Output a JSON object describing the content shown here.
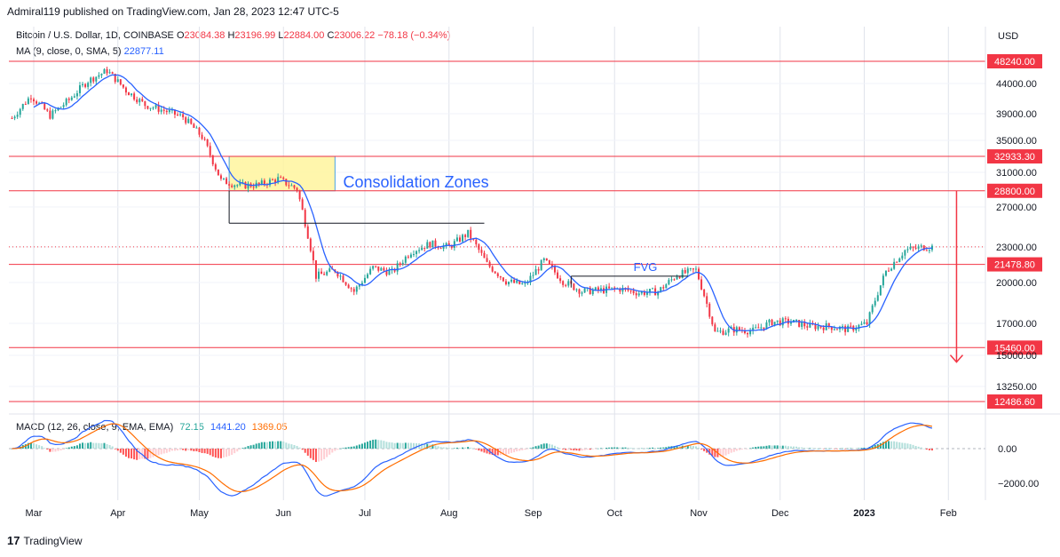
{
  "header": {
    "published": "Admiral119 published on TradingView.com, Jan 28, 2023 12:47 UTC-5"
  },
  "legend": {
    "symbol": "Bitcoin / U.S. Dollar, 1D, COINBASE",
    "o_label": "O",
    "open": "23084.38",
    "h_label": "H",
    "high": "23196.99",
    "l_label": "L",
    "low": "22884.00",
    "c_label": "C",
    "close": "23006.22",
    "change": "−78.18 (−0.34%)",
    "ma_label": "MA (9, close, 0, SMA, 5)",
    "ma_value": "22877.11"
  },
  "macd_legend": {
    "label": "MACD (12, 26, close, 9, EMA, EMA)",
    "histogram": "72.15",
    "macd": "1441.20",
    "signal": "1369.05"
  },
  "footer": {
    "brand": "TradingView",
    "logo": "17"
  },
  "colors": {
    "up": "#26a69a",
    "down": "#f23645",
    "ma": "#2962ff",
    "signal": "#ff6d00",
    "hline": "#f23645",
    "zone_fill": "#fff59d",
    "zone_border": "#4aa3df"
  },
  "chart_data": {
    "type": "candlestick",
    "currency": "USD",
    "price_axis_ticks": [
      "44000.00",
      "39000.00",
      "35000.00",
      "31000.00",
      "27000.00",
      "23000.00",
      "20000.00",
      "17000.00",
      "15000.00",
      "13250.00"
    ],
    "time_labels": [
      "Mar",
      "Apr",
      "May",
      "Jun",
      "Jul",
      "Aug",
      "Sep",
      "Oct",
      "Nov",
      "Dec",
      "2023",
      "Feb"
    ],
    "horizontal_levels": [
      {
        "label": "48240.00",
        "value": 48240
      },
      {
        "label": "32933.30",
        "value": 32933.3
      },
      {
        "label": "28800.00",
        "value": 28800
      },
      {
        "label": "21478.80",
        "value": 21478.8
      },
      {
        "label": "15460.00",
        "value": 15460
      },
      {
        "label": "12486.60",
        "value": 12486.6
      }
    ],
    "annotations": {
      "consolidation": "Consolidation Zones",
      "fvg": "FVG"
    },
    "macd_axis_ticks": [
      "0.00",
      "−2000.00"
    ],
    "close_series": [
      {
        "date": "2022-02-21",
        "close": 38300
      },
      {
        "date": "2022-02-28",
        "close": 41900
      },
      {
        "date": "2022-03-07",
        "close": 38700
      },
      {
        "date": "2022-03-14",
        "close": 41200
      },
      {
        "date": "2022-03-21",
        "close": 44500
      },
      {
        "date": "2022-03-28",
        "close": 46400
      },
      {
        "date": "2022-04-04",
        "close": 42800
      },
      {
        "date": "2022-04-11",
        "close": 40400
      },
      {
        "date": "2022-04-18",
        "close": 39500
      },
      {
        "date": "2022-04-25",
        "close": 38500
      },
      {
        "date": "2022-05-02",
        "close": 35500
      },
      {
        "date": "2022-05-09",
        "close": 30000
      },
      {
        "date": "2022-05-16",
        "close": 29400
      },
      {
        "date": "2022-05-23",
        "close": 29500
      },
      {
        "date": "2022-05-30",
        "close": 30200
      },
      {
        "date": "2022-06-06",
        "close": 29000
      },
      {
        "date": "2022-06-13",
        "close": 20500
      },
      {
        "date": "2022-06-20",
        "close": 21000
      },
      {
        "date": "2022-06-27",
        "close": 19300
      },
      {
        "date": "2022-07-04",
        "close": 21200
      },
      {
        "date": "2022-07-11",
        "close": 20800
      },
      {
        "date": "2022-07-18",
        "close": 22600
      },
      {
        "date": "2022-07-25",
        "close": 23300
      },
      {
        "date": "2022-08-01",
        "close": 23000
      },
      {
        "date": "2022-08-08",
        "close": 24300
      },
      {
        "date": "2022-08-15",
        "close": 21500
      },
      {
        "date": "2022-08-22",
        "close": 20100
      },
      {
        "date": "2022-08-29",
        "close": 19800
      },
      {
        "date": "2022-09-05",
        "close": 21800
      },
      {
        "date": "2022-09-12",
        "close": 20100
      },
      {
        "date": "2022-09-19",
        "close": 19300
      },
      {
        "date": "2022-09-26",
        "close": 19400
      },
      {
        "date": "2022-10-03",
        "close": 19500
      },
      {
        "date": "2022-10-10",
        "close": 19200
      },
      {
        "date": "2022-10-17",
        "close": 19300
      },
      {
        "date": "2022-10-24",
        "close": 20600
      },
      {
        "date": "2022-10-31",
        "close": 21000
      },
      {
        "date": "2022-11-07",
        "close": 16400
      },
      {
        "date": "2022-11-14",
        "close": 16600
      },
      {
        "date": "2022-11-21",
        "close": 16500
      },
      {
        "date": "2022-11-28",
        "close": 17100
      },
      {
        "date": "2022-12-05",
        "close": 17100
      },
      {
        "date": "2022-12-12",
        "close": 16800
      },
      {
        "date": "2022-12-19",
        "close": 16800
      },
      {
        "date": "2022-12-26",
        "close": 16600
      },
      {
        "date": "2023-01-02",
        "close": 17000
      },
      {
        "date": "2023-01-09",
        "close": 20900
      },
      {
        "date": "2023-01-16",
        "close": 22700
      },
      {
        "date": "2023-01-23",
        "close": 23000
      }
    ]
  }
}
